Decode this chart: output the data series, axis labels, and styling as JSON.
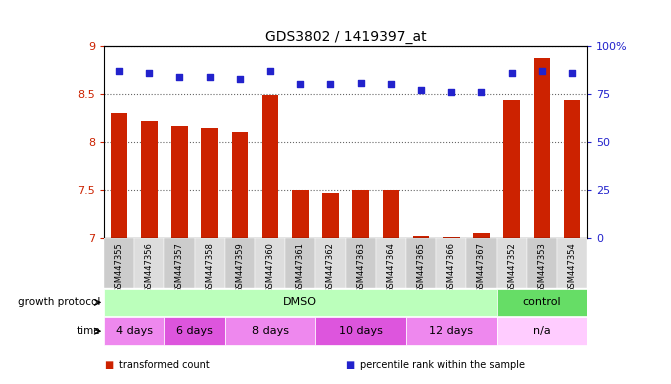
{
  "title": "GDS3802 / 1419397_at",
  "samples": [
    "GSM447355",
    "GSM447356",
    "GSM447357",
    "GSM447358",
    "GSM447359",
    "GSM447360",
    "GSM447361",
    "GSM447362",
    "GSM447363",
    "GSM447364",
    "GSM447365",
    "GSM447366",
    "GSM447367",
    "GSM447352",
    "GSM447353",
    "GSM447354"
  ],
  "bar_values": [
    8.3,
    8.22,
    8.17,
    8.15,
    8.1,
    8.49,
    7.5,
    7.47,
    7.5,
    7.5,
    7.02,
    7.01,
    7.05,
    8.44,
    8.88,
    8.44
  ],
  "dot_values": [
    87,
    86,
    84,
    84,
    83,
    87,
    80,
    80,
    81,
    80,
    77,
    76,
    76,
    86,
    87,
    86
  ],
  "bar_color": "#cc2200",
  "dot_color": "#2222cc",
  "ylim_left": [
    7,
    9
  ],
  "ylim_right": [
    0,
    100
  ],
  "yticks_left": [
    7,
    7.5,
    8,
    8.5,
    9
  ],
  "yticks_right": [
    0,
    25,
    50,
    75,
    100
  ],
  "ytick_labels_left": [
    "7",
    "7.5",
    "8",
    "8.5",
    "9"
  ],
  "ytick_labels_right": [
    "0",
    "25",
    "50",
    "75",
    "100%"
  ],
  "growth_protocol_label": "growth protocol",
  "time_label": "time",
  "growth_protocol_groups": [
    {
      "label": "DMSO",
      "start": 0,
      "end": 12,
      "color": "#bbffbb"
    },
    {
      "label": "control",
      "start": 13,
      "end": 15,
      "color": "#66dd66"
    }
  ],
  "time_groups": [
    {
      "label": "4 days",
      "start": 0,
      "end": 1,
      "color": "#ee88ee"
    },
    {
      "label": "6 days",
      "start": 2,
      "end": 3,
      "color": "#dd55dd"
    },
    {
      "label": "8 days",
      "start": 4,
      "end": 6,
      "color": "#ee88ee"
    },
    {
      "label": "10 days",
      "start": 7,
      "end": 9,
      "color": "#dd55dd"
    },
    {
      "label": "12 days",
      "start": 10,
      "end": 12,
      "color": "#ee88ee"
    },
    {
      "label": "n/a",
      "start": 13,
      "end": 15,
      "color": "#ffccff"
    }
  ],
  "legend_items": [
    {
      "label": "transformed count",
      "color": "#cc2200"
    },
    {
      "label": "percentile rank within the sample",
      "color": "#2222cc"
    }
  ],
  "bar_width": 0.55,
  "dot_size": 25,
  "background_color": "#ffffff",
  "ax_background": "#ffffff",
  "yaxis_left_color": "#cc2200",
  "yaxis_right_color": "#2222cc",
  "xticklabel_bg": "#dddddd",
  "title_fontsize": 10
}
